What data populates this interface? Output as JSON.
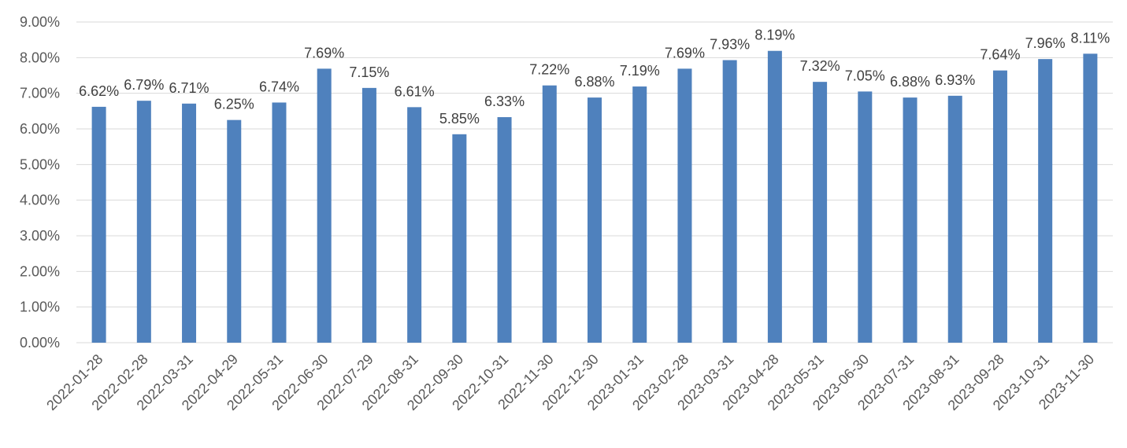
{
  "chart_data": {
    "type": "bar",
    "title": "",
    "xlabel": "",
    "ylabel": "",
    "ylim": [
      0,
      9
    ],
    "ytick_step": 1,
    "ytick_format": "percent_2dp",
    "grid": true,
    "legend": "none",
    "bar_color": "#4F81BD",
    "categories": [
      "2022-01-28",
      "2022-02-28",
      "2022-03-31",
      "2022-04-29",
      "2022-05-31",
      "2022-06-30",
      "2022-07-29",
      "2022-08-31",
      "2022-09-30",
      "2022-10-31",
      "2022-11-30",
      "2022-12-30",
      "2023-01-31",
      "2023-02-28",
      "2023-03-31",
      "2023-04-28",
      "2023-05-31",
      "2023-06-30",
      "2023-07-31",
      "2023-08-31",
      "2023-09-28",
      "2023-10-31",
      "2023-11-30"
    ],
    "values": [
      6.62,
      6.79,
      6.71,
      6.25,
      6.74,
      7.69,
      7.15,
      6.61,
      5.85,
      6.33,
      7.22,
      6.88,
      7.19,
      7.69,
      7.93,
      8.19,
      7.32,
      7.05,
      6.88,
      6.93,
      7.64,
      7.96,
      8.11
    ],
    "data_labels": [
      "6.62%",
      "6.79%",
      "6.71%",
      "6.25%",
      "6.74%",
      "7.69%",
      "7.15%",
      "6.61%",
      "5.85%",
      "6.33%",
      "7.22%",
      "6.88%",
      "7.19%",
      "7.69%",
      "7.93%",
      "8.19%",
      "7.32%",
      "7.05%",
      "6.88%",
      "6.93%",
      "7.64%",
      "7.96%",
      "8.11%"
    ],
    "y_tick_labels": [
      "0.00%",
      "1.00%",
      "2.00%",
      "3.00%",
      "4.00%",
      "5.00%",
      "6.00%",
      "7.00%",
      "8.00%",
      "9.00%"
    ]
  }
}
